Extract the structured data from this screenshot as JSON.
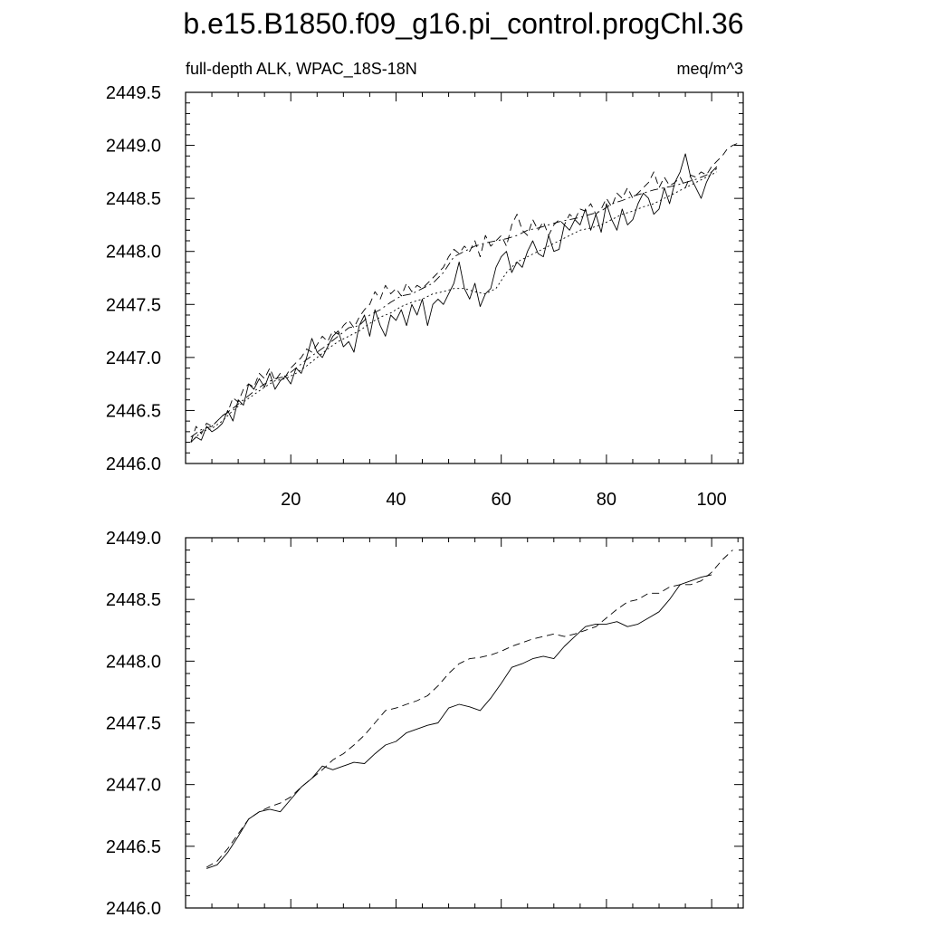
{
  "figure": {
    "title": "b.e15.B1850.f09_g16.pi_control.progChl.36",
    "subtitle_left": "full-depth ALK, WPAC_18S-18N",
    "subtitle_right": "meq/m^3"
  },
  "chart_data": [
    {
      "type": "line",
      "xlim": [
        0,
        106
      ],
      "ylim": [
        2446.0,
        2449.5
      ],
      "x_ticks": [
        20,
        40,
        60,
        80,
        100
      ],
      "x_tick_labels": [
        "20",
        "40",
        "60",
        "80",
        "100"
      ],
      "y_ticks": [
        2446.0,
        2446.5,
        2447.0,
        2447.5,
        2448.0,
        2448.5,
        2449.0,
        2449.5
      ],
      "y_tick_labels": [
        "2446.0",
        "2446.5",
        "2447.0",
        "2447.5",
        "2448.0",
        "2448.5",
        "2449.0",
        "2449.5"
      ],
      "grid": false,
      "series": [
        {
          "style": "solid",
          "x": [
            1,
            2,
            3,
            4,
            5,
            6,
            7,
            8,
            9,
            10,
            11,
            12,
            13,
            14,
            15,
            16,
            17,
            18,
            19,
            20,
            21,
            22,
            23,
            24,
            25,
            26,
            27,
            28,
            29,
            30,
            31,
            32,
            33,
            34,
            35,
            36,
            37,
            38,
            39,
            40,
            41,
            42,
            43,
            44,
            45,
            46,
            47,
            48,
            49,
            50,
            51,
            52,
            53,
            54,
            55,
            56,
            57,
            58,
            59,
            60,
            61,
            62,
            63,
            64,
            65,
            66,
            67,
            68,
            69,
            70,
            71,
            72,
            73,
            74,
            75,
            76,
            77,
            78,
            79,
            80,
            81,
            82,
            83,
            84,
            85,
            86,
            87,
            88,
            89,
            90,
            91,
            92,
            93,
            94,
            95,
            96,
            97,
            98,
            99,
            100,
            101
          ],
          "y": [
            2446.2,
            2446.25,
            2446.22,
            2446.35,
            2446.3,
            2446.33,
            2446.38,
            2446.5,
            2446.4,
            2446.6,
            2446.55,
            2446.75,
            2446.7,
            2446.8,
            2446.72,
            2446.85,
            2446.7,
            2446.78,
            2446.82,
            2446.75,
            2446.9,
            2446.85,
            2447.0,
            2447.18,
            2447.05,
            2447.0,
            2447.1,
            2447.2,
            2447.25,
            2447.1,
            2447.15,
            2447.05,
            2447.3,
            2447.4,
            2447.2,
            2447.45,
            2447.3,
            2447.2,
            2447.4,
            2447.35,
            2447.45,
            2447.3,
            2447.5,
            2447.4,
            2447.55,
            2447.3,
            2447.5,
            2447.55,
            2447.5,
            2447.6,
            2447.7,
            2447.9,
            2447.65,
            2447.55,
            2447.7,
            2447.48,
            2447.6,
            2447.65,
            2447.85,
            2447.95,
            2448.0,
            2447.8,
            2447.9,
            2447.85,
            2448.0,
            2448.1,
            2447.98,
            2447.95,
            2448.15,
            2448.0,
            2448.02,
            2448.25,
            2448.2,
            2448.3,
            2448.25,
            2448.4,
            2448.2,
            2448.35,
            2448.18,
            2448.45,
            2448.3,
            2448.2,
            2448.4,
            2448.25,
            2448.3,
            2448.45,
            2448.55,
            2448.5,
            2448.35,
            2448.4,
            2448.6,
            2448.45,
            2448.65,
            2448.75,
            2448.92,
            2448.7,
            2448.6,
            2448.5,
            2448.65,
            2448.75,
            2448.8
          ]
        },
        {
          "style": "dashed",
          "x": [
            1,
            2,
            3,
            4,
            5,
            6,
            7,
            8,
            9,
            10,
            11,
            12,
            13,
            14,
            15,
            16,
            17,
            18,
            19,
            20,
            21,
            22,
            23,
            24,
            25,
            26,
            27,
            28,
            29,
            30,
            31,
            32,
            33,
            34,
            35,
            36,
            37,
            38,
            39,
            40,
            41,
            42,
            43,
            44,
            45,
            46,
            47,
            48,
            49,
            50,
            51,
            52,
            53,
            54,
            55,
            56,
            57,
            58,
            59,
            60,
            61,
            62,
            63,
            64,
            65,
            66,
            67,
            68,
            69,
            70,
            71,
            72,
            73,
            74,
            75,
            76,
            77,
            78,
            79,
            80,
            81,
            82,
            83,
            84,
            85,
            86,
            87,
            88,
            89,
            90,
            91,
            92,
            93,
            94,
            95,
            96,
            97,
            98,
            99,
            100,
            101,
            102,
            103,
            104,
            105
          ],
          "y": [
            2446.2,
            2446.35,
            2446.28,
            2446.38,
            2446.35,
            2446.4,
            2446.45,
            2446.48,
            2446.62,
            2446.58,
            2446.7,
            2446.75,
            2446.72,
            2446.85,
            2446.8,
            2446.9,
            2446.78,
            2446.85,
            2446.82,
            2446.9,
            2446.95,
            2447.0,
            2447.08,
            2447.05,
            2447.12,
            2447.2,
            2447.15,
            2447.25,
            2447.22,
            2447.3,
            2447.35,
            2447.28,
            2447.38,
            2447.45,
            2447.5,
            2447.62,
            2447.55,
            2447.68,
            2447.6,
            2447.65,
            2447.58,
            2447.7,
            2447.62,
            2447.68,
            2447.65,
            2447.7,
            2447.75,
            2447.8,
            2447.85,
            2447.95,
            2448.02,
            2447.98,
            2448.05,
            2448.0,
            2448.1,
            2447.95,
            2448.15,
            2448.05,
            2448.1,
            2448.15,
            2448.05,
            2448.25,
            2448.35,
            2448.2,
            2448.15,
            2448.3,
            2448.2,
            2448.28,
            2448.15,
            2448.25,
            2448.3,
            2448.25,
            2448.35,
            2448.3,
            2448.4,
            2448.38,
            2448.45,
            2448.35,
            2448.4,
            2448.5,
            2448.42,
            2448.55,
            2448.5,
            2448.6,
            2448.5,
            2448.55,
            2448.6,
            2448.65,
            2448.75,
            2448.6,
            2448.7,
            2448.62,
            2448.65,
            2448.7,
            2448.6,
            2448.72,
            2448.7,
            2448.75,
            2448.72,
            2448.8,
            2448.85,
            2448.9,
            2448.97,
            2449.0,
            2449.02
          ]
        },
        {
          "style": "dash-dot",
          "x": [
            1,
            3,
            5,
            7,
            9,
            11,
            13,
            15,
            17,
            19,
            21,
            23,
            25,
            27,
            29,
            31,
            33,
            35,
            37,
            39,
            41,
            43,
            45,
            47,
            49,
            51,
            53,
            55,
            57,
            59,
            61,
            63,
            65,
            67,
            69,
            71,
            73,
            75,
            77,
            79,
            81,
            83,
            85,
            87,
            89,
            91,
            93,
            95,
            97,
            99,
            101
          ],
          "y": [
            2446.25,
            2446.32,
            2446.35,
            2446.45,
            2446.52,
            2446.6,
            2446.68,
            2446.75,
            2446.8,
            2446.82,
            2446.9,
            2446.98,
            2447.05,
            2447.12,
            2447.2,
            2447.28,
            2447.3,
            2447.4,
            2447.45,
            2447.52,
            2447.58,
            2447.6,
            2447.65,
            2447.7,
            2447.8,
            2447.95,
            2448.0,
            2448.05,
            2448.08,
            2448.1,
            2448.12,
            2448.15,
            2448.2,
            2448.22,
            2448.25,
            2448.28,
            2448.3,
            2448.32,
            2448.35,
            2448.38,
            2448.45,
            2448.48,
            2448.52,
            2448.55,
            2448.58,
            2448.6,
            2448.62,
            2448.65,
            2448.68,
            2448.72,
            2448.78
          ]
        },
        {
          "style": "dotted",
          "x": [
            1,
            3,
            5,
            7,
            9,
            11,
            13,
            15,
            17,
            19,
            21,
            23,
            25,
            27,
            29,
            31,
            33,
            35,
            37,
            39,
            41,
            43,
            45,
            47,
            49,
            51,
            53,
            55,
            57,
            59,
            61,
            63,
            65,
            67,
            69,
            71,
            73,
            75,
            77,
            79,
            81,
            83,
            85,
            87,
            89,
            91,
            93,
            95,
            97,
            99,
            101
          ],
          "y": [
            2446.2,
            2446.3,
            2446.33,
            2446.4,
            2446.5,
            2446.58,
            2446.65,
            2446.72,
            2446.78,
            2446.8,
            2446.85,
            2446.92,
            2447.0,
            2447.08,
            2447.15,
            2447.2,
            2447.25,
            2447.32,
            2447.38,
            2447.42,
            2447.48,
            2447.52,
            2447.55,
            2447.6,
            2447.62,
            2447.65,
            2447.65,
            2447.62,
            2447.6,
            2447.65,
            2447.8,
            2447.9,
            2447.95,
            2448.0,
            2448.05,
            2448.1,
            2448.15,
            2448.2,
            2448.22,
            2448.25,
            2448.3,
            2448.35,
            2448.38,
            2448.42,
            2448.45,
            2448.5,
            2448.55,
            2448.6,
            2448.65,
            2448.7,
            2448.75
          ]
        }
      ]
    },
    {
      "type": "line",
      "xlim": [
        0,
        106
      ],
      "ylim": [
        2446.0,
        2449.0
      ],
      "x_ticks": [
        20,
        40,
        60,
        80,
        100
      ],
      "x_tick_labels": [],
      "y_ticks": [
        2446.0,
        2446.5,
        2447.0,
        2447.5,
        2448.0,
        2448.5,
        2449.0
      ],
      "y_tick_labels": [
        "2446.0",
        "2446.5",
        "2447.0",
        "2447.5",
        "2448.0",
        "2448.5",
        "2449.0"
      ],
      "grid": false,
      "series": [
        {
          "style": "solid",
          "x": [
            4,
            6,
            8,
            10,
            12,
            14,
            16,
            18,
            20,
            22,
            24,
            26,
            28,
            30,
            32,
            34,
            36,
            38,
            40,
            42,
            44,
            46,
            48,
            50,
            52,
            54,
            56,
            58,
            60,
            62,
            64,
            66,
            68,
            70,
            72,
            74,
            76,
            78,
            80,
            82,
            84,
            86,
            88,
            90,
            92,
            94,
            96,
            98,
            100
          ],
          "y": [
            2446.32,
            2446.35,
            2446.45,
            2446.58,
            2446.72,
            2446.78,
            2446.8,
            2446.78,
            2446.88,
            2446.98,
            2447.05,
            2447.15,
            2447.12,
            2447.15,
            2447.18,
            2447.17,
            2447.25,
            2447.32,
            2447.35,
            2447.42,
            2447.45,
            2447.48,
            2447.5,
            2447.62,
            2447.65,
            2447.63,
            2447.6,
            2447.7,
            2447.82,
            2447.95,
            2447.98,
            2448.02,
            2448.04,
            2448.02,
            2448.12,
            2448.2,
            2448.28,
            2448.3,
            2448.3,
            2448.32,
            2448.28,
            2448.3,
            2448.35,
            2448.4,
            2448.5,
            2448.62,
            2448.65,
            2448.68,
            2448.7
          ]
        },
        {
          "style": "dashed",
          "x": [
            4,
            6,
            8,
            10,
            12,
            14,
            16,
            18,
            20,
            22,
            24,
            26,
            28,
            30,
            32,
            34,
            36,
            38,
            40,
            42,
            44,
            46,
            48,
            50,
            52,
            54,
            56,
            58,
            60,
            62,
            64,
            66,
            68,
            70,
            72,
            74,
            76,
            78,
            80,
            82,
            84,
            86,
            88,
            90,
            92,
            94,
            96,
            98,
            100,
            102,
            104
          ],
          "y": [
            2446.33,
            2446.38,
            2446.48,
            2446.6,
            2446.72,
            2446.78,
            2446.82,
            2446.85,
            2446.9,
            2446.98,
            2447.05,
            2447.12,
            2447.2,
            2447.25,
            2447.32,
            2447.4,
            2447.5,
            2447.6,
            2447.62,
            2447.65,
            2447.68,
            2447.72,
            2447.8,
            2447.9,
            2447.98,
            2448.02,
            2448.03,
            2448.05,
            2448.08,
            2448.12,
            2448.15,
            2448.18,
            2448.2,
            2448.22,
            2448.2,
            2448.22,
            2448.25,
            2448.28,
            2448.35,
            2448.42,
            2448.48,
            2448.5,
            2448.55,
            2448.55,
            2448.6,
            2448.62,
            2448.62,
            2448.65,
            2448.72,
            2448.82,
            2448.9
          ]
        }
      ]
    }
  ]
}
